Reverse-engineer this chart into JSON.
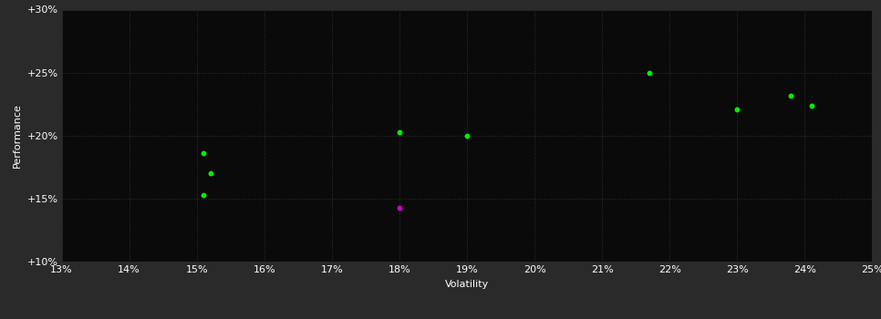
{
  "background_color": "#2a2a2a",
  "plot_bg_color": "#0a0a0a",
  "grid_color": "#3a3a3a",
  "x_label": "Volatility",
  "y_label": "Performance",
  "x_min": 0.13,
  "x_max": 0.25,
  "y_min": 0.1,
  "y_max": 0.3,
  "x_ticks": [
    0.13,
    0.14,
    0.15,
    0.16,
    0.17,
    0.18,
    0.19,
    0.2,
    0.21,
    0.22,
    0.23,
    0.24,
    0.25
  ],
  "y_ticks": [
    0.1,
    0.15,
    0.2,
    0.25,
    0.3
  ],
  "green_points": [
    [
      0.151,
      0.186
    ],
    [
      0.152,
      0.17
    ],
    [
      0.151,
      0.153
    ],
    [
      0.18,
      0.203
    ],
    [
      0.19,
      0.2
    ],
    [
      0.217,
      0.25
    ],
    [
      0.23,
      0.221
    ],
    [
      0.238,
      0.232
    ],
    [
      0.241,
      0.224
    ]
  ],
  "magenta_points": [
    [
      0.18,
      0.143
    ]
  ],
  "green_color": "#00ee00",
  "magenta_color": "#cc00cc",
  "dot_size": 18,
  "tick_color": "#ffffff",
  "label_color": "#ffffff",
  "grid_linestyle": ":",
  "grid_linewidth": 0.7,
  "grid_alpha": 0.8,
  "tick_fontsize": 8,
  "label_fontsize": 8
}
